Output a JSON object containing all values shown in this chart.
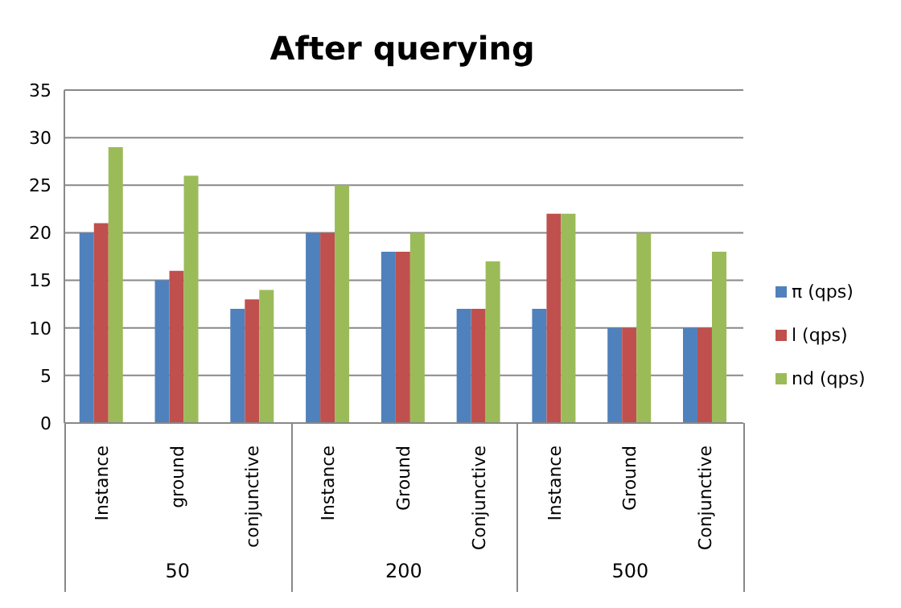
{
  "chart_data": {
    "type": "bar",
    "title": "After querying",
    "categories": [
      "Instance",
      "ground",
      "conjunctive",
      "Instance",
      "Ground",
      "Conjunctive",
      "Instance",
      "Ground",
      "Conjunctive"
    ],
    "annotations": [
      "50",
      "200",
      "500"
    ],
    "series": [
      {
        "name": "π (qps)",
        "color": "#4f81bd",
        "values": [
          20,
          15,
          12,
          20,
          18,
          12,
          12,
          10,
          10
        ]
      },
      {
        "name": "l (qps)",
        "color": "#c0504d",
        "values": [
          21,
          16,
          13,
          20,
          18,
          12,
          22,
          10,
          10
        ]
      },
      {
        "name": "nd (qps)",
        "color": "#9bbb59",
        "values": [
          29,
          26,
          14,
          25,
          20,
          17,
          22,
          20,
          18
        ]
      }
    ],
    "ylim": [
      0,
      35
    ],
    "yticks": [
      0,
      5,
      10,
      15,
      20,
      25,
      30,
      35
    ],
    "grid": "y",
    "legend": "right"
  }
}
